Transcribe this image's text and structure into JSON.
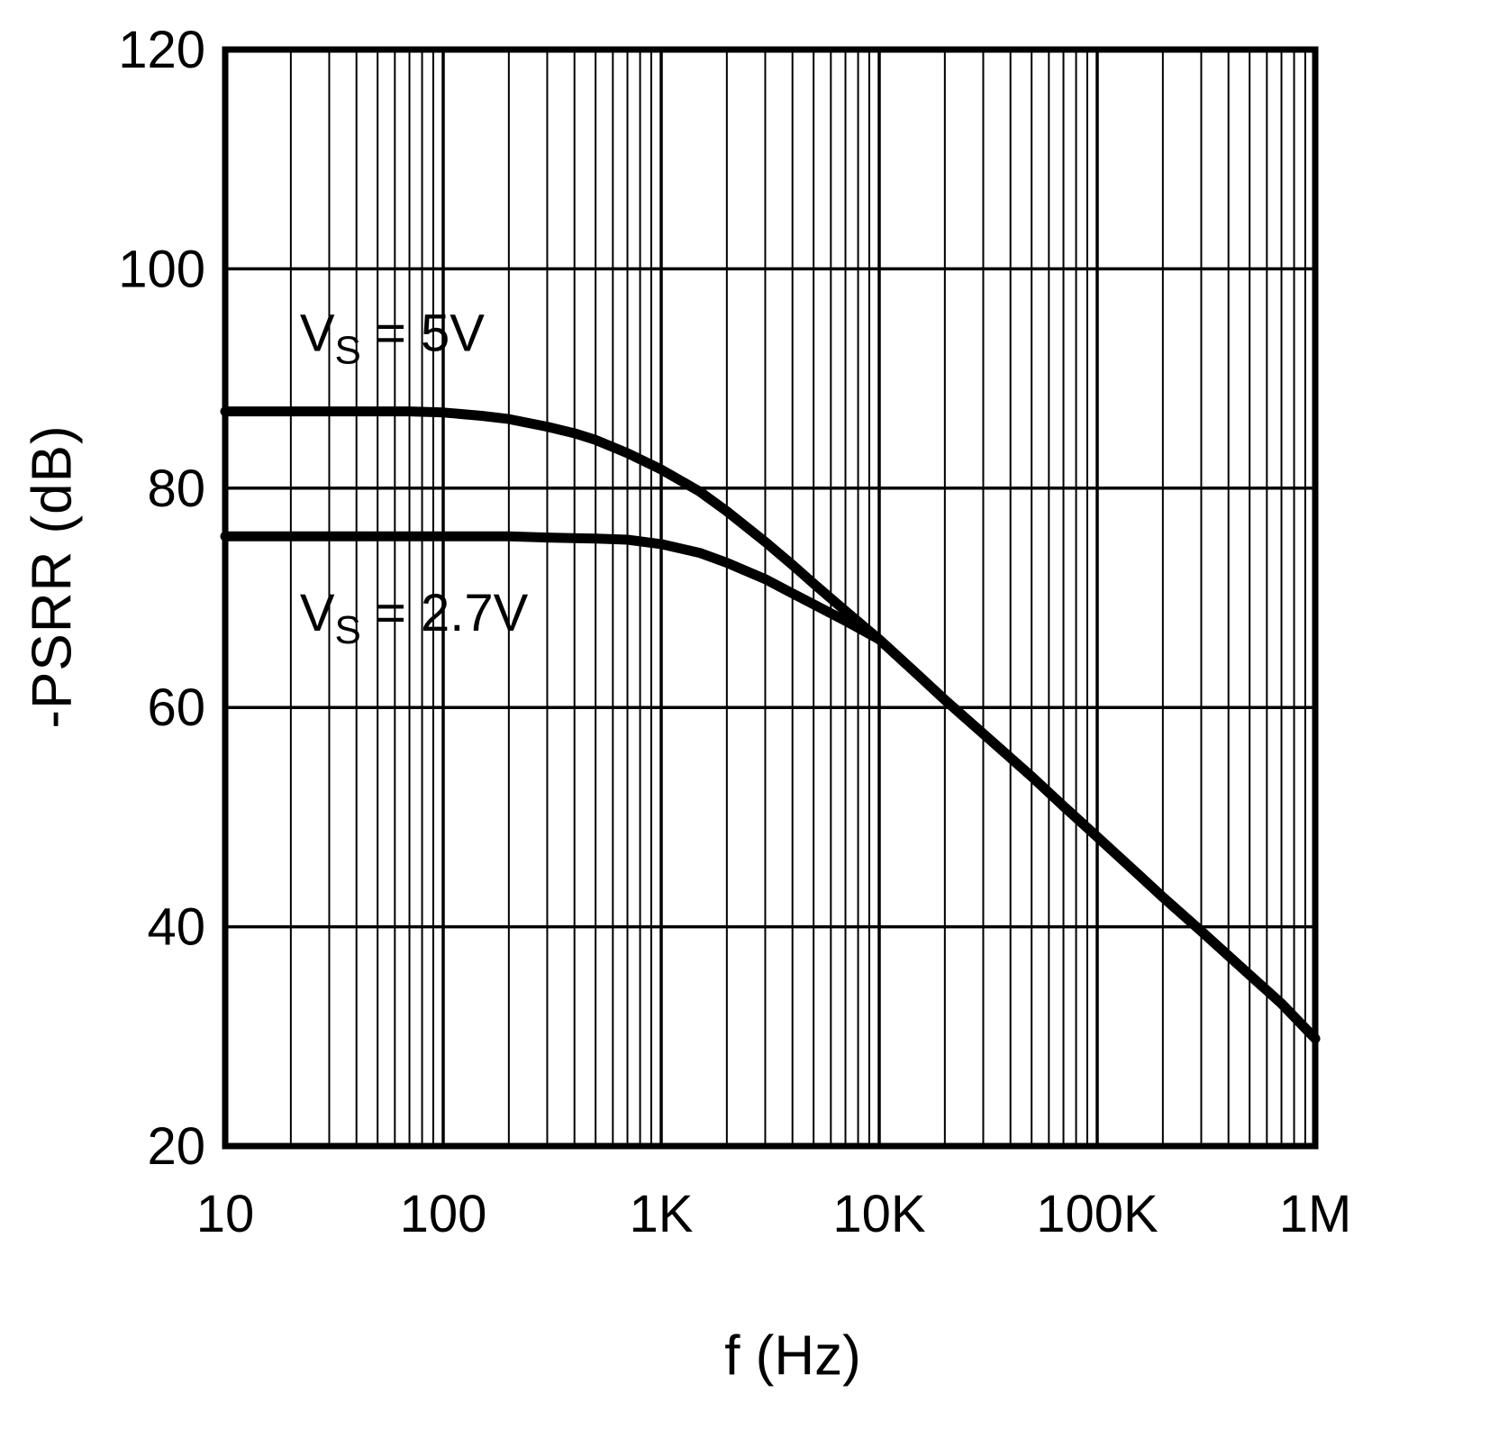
{
  "figure": {
    "background": "#ffffff",
    "line_color": "#000000",
    "grid_color": "#000000",
    "text_color": "#000000"
  },
  "chart_data": {
    "type": "line",
    "title": "",
    "xlabel": "f (Hz)",
    "ylabel": "-PSRR (dB)",
    "x_scale": "log",
    "xlim": [
      10,
      1000000
    ],
    "ylim": [
      20,
      120
    ],
    "grid": {
      "vertical_major": true,
      "vertical_minor": true,
      "horizontal_major": true,
      "horizontal_minor": false
    },
    "legend_position": "inline-labels",
    "x_ticks": [
      {
        "value": 10,
        "label": "10"
      },
      {
        "value": 100,
        "label": "100"
      },
      {
        "value": 1000,
        "label": "1K"
      },
      {
        "value": 10000,
        "label": "10K"
      },
      {
        "value": 100000,
        "label": "100K"
      },
      {
        "value": 1000000,
        "label": "1M"
      }
    ],
    "y_ticks": [
      {
        "value": 20,
        "label": "20"
      },
      {
        "value": 40,
        "label": "40"
      },
      {
        "value": 60,
        "label": "60"
      },
      {
        "value": 80,
        "label": "80"
      },
      {
        "value": 100,
        "label": "100"
      },
      {
        "value": 120,
        "label": "120"
      }
    ],
    "series": [
      {
        "name": "VS = 5V",
        "label": {
          "pre": "V",
          "sub": "S",
          "post": " = 5V"
        },
        "label_anchor": {
          "f": 22,
          "db": 92.5
        },
        "points": [
          [
            10,
            87
          ],
          [
            15,
            87
          ],
          [
            20,
            87
          ],
          [
            30,
            87
          ],
          [
            50,
            87
          ],
          [
            70,
            87
          ],
          [
            100,
            86.9
          ],
          [
            150,
            86.6
          ],
          [
            200,
            86.3
          ],
          [
            300,
            85.6
          ],
          [
            400,
            85
          ],
          [
            500,
            84.4
          ],
          [
            700,
            83.2
          ],
          [
            1000,
            81.7
          ],
          [
            1500,
            79.7
          ],
          [
            2000,
            77.9
          ],
          [
            3000,
            75.1
          ],
          [
            4000,
            73
          ],
          [
            5000,
            71.3
          ],
          [
            7000,
            68.8
          ],
          [
            10000,
            66.2
          ],
          [
            15000,
            63
          ],
          [
            20000,
            60.7
          ],
          [
            30000,
            57.6
          ],
          [
            50000,
            53.7
          ],
          [
            70000,
            51
          ],
          [
            100000,
            48.2
          ],
          [
            150000,
            45
          ],
          [
            200000,
            42.7
          ],
          [
            300000,
            39.6
          ],
          [
            500000,
            35.6
          ],
          [
            700000,
            33
          ],
          [
            1000000,
            29.8
          ]
        ]
      },
      {
        "name": "VS = 2.7V",
        "label": {
          "pre": "V",
          "sub": "S",
          "post": " = 2.7V"
        },
        "label_anchor": {
          "f": 22,
          "db": 67
        },
        "points": [
          [
            10,
            75.6
          ],
          [
            20,
            75.6
          ],
          [
            50,
            75.6
          ],
          [
            100,
            75.6
          ],
          [
            200,
            75.6
          ],
          [
            300,
            75.5
          ],
          [
            500,
            75.4
          ],
          [
            700,
            75.3
          ],
          [
            1000,
            74.9
          ],
          [
            1500,
            74.1
          ],
          [
            2000,
            73.2
          ],
          [
            3000,
            71.7
          ],
          [
            4000,
            70.4
          ],
          [
            5000,
            69.4
          ],
          [
            7000,
            67.9
          ],
          [
            10000,
            66.2
          ],
          [
            15000,
            63
          ],
          [
            20000,
            60.7
          ],
          [
            30000,
            57.6
          ],
          [
            50000,
            53.7
          ],
          [
            70000,
            51
          ],
          [
            100000,
            48.2
          ],
          [
            150000,
            45
          ],
          [
            200000,
            42.7
          ],
          [
            300000,
            39.6
          ],
          [
            500000,
            35.6
          ],
          [
            700000,
            33
          ],
          [
            1000000,
            29.8
          ]
        ]
      }
    ]
  }
}
